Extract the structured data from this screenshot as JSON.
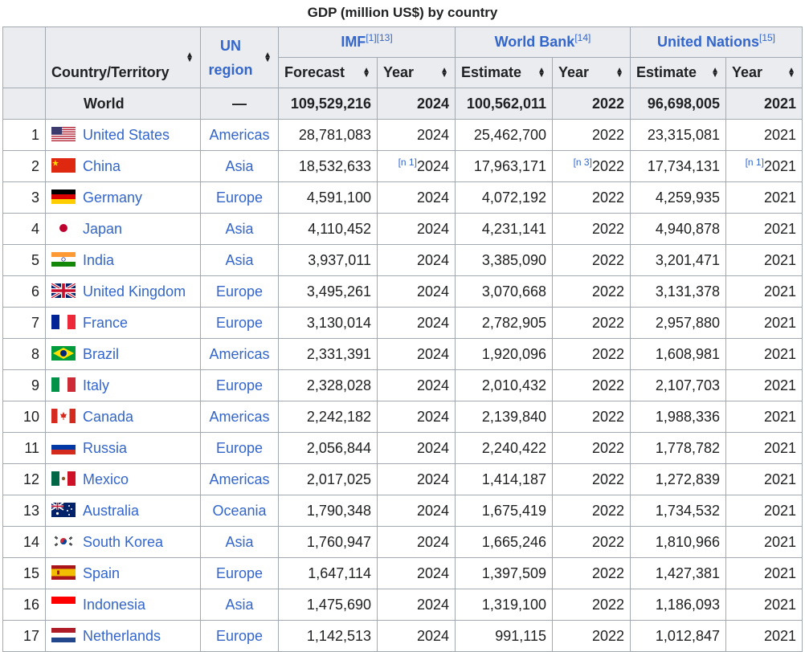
{
  "caption": "GDP (million US$) by country",
  "headers": {
    "country": "Country/Territory",
    "un_region": "UN region",
    "imf": "IMF",
    "imf_refs": "[1][13]",
    "world_bank": "World Bank",
    "wb_refs": "[14]",
    "un": "United Nations",
    "un_refs": "[15]",
    "forecast": "Forecast",
    "estimate": "Estimate",
    "year": "Year"
  },
  "world": {
    "name": "World",
    "region": "—",
    "imf": "109,529,216",
    "imf_year": "2024",
    "wb": "100,562,011",
    "wb_year": "2022",
    "un": "96,698,005",
    "un_year": "2021"
  },
  "rows": [
    {
      "rank": "1",
      "flag": "us-flag",
      "name": "United States",
      "region": "Americas",
      "imf": "28,781,083",
      "imf_note": "",
      "imf_year": "2024",
      "wb": "25,462,700",
      "wb_note": "",
      "wb_year": "2022",
      "un": "23,315,081",
      "un_note": "",
      "un_year": "2021"
    },
    {
      "rank": "2",
      "flag": "cn-flag",
      "name": "China",
      "region": "Asia",
      "imf": "18,532,633",
      "imf_note": "[n 1]",
      "imf_year": "2024",
      "wb": "17,963,171",
      "wb_note": "[n 3]",
      "wb_year": "2022",
      "un": "17,734,131",
      "un_note": "[n 1]",
      "un_year": "2021"
    },
    {
      "rank": "3",
      "flag": "de-flag",
      "name": "Germany",
      "region": "Europe",
      "imf": "4,591,100",
      "imf_note": "",
      "imf_year": "2024",
      "wb": "4,072,192",
      "wb_note": "",
      "wb_year": "2022",
      "un": "4,259,935",
      "un_note": "",
      "un_year": "2021"
    },
    {
      "rank": "4",
      "flag": "jp-flag",
      "name": "Japan",
      "region": "Asia",
      "imf": "4,110,452",
      "imf_note": "",
      "imf_year": "2024",
      "wb": "4,231,141",
      "wb_note": "",
      "wb_year": "2022",
      "un": "4,940,878",
      "un_note": "",
      "un_year": "2021"
    },
    {
      "rank": "5",
      "flag": "in-flag",
      "name": "India",
      "region": "Asia",
      "imf": "3,937,011",
      "imf_note": "",
      "imf_year": "2024",
      "wb": "3,385,090",
      "wb_note": "",
      "wb_year": "2022",
      "un": "3,201,471",
      "un_note": "",
      "un_year": "2021"
    },
    {
      "rank": "6",
      "flag": "gb-flag",
      "name": "United Kingdom",
      "region": "Europe",
      "imf": "3,495,261",
      "imf_note": "",
      "imf_year": "2024",
      "wb": "3,070,668",
      "wb_note": "",
      "wb_year": "2022",
      "un": "3,131,378",
      "un_note": "",
      "un_year": "2021"
    },
    {
      "rank": "7",
      "flag": "fr-flag",
      "name": "France",
      "region": "Europe",
      "imf": "3,130,014",
      "imf_note": "",
      "imf_year": "2024",
      "wb": "2,782,905",
      "wb_note": "",
      "wb_year": "2022",
      "un": "2,957,880",
      "un_note": "",
      "un_year": "2021"
    },
    {
      "rank": "8",
      "flag": "br-flag",
      "name": "Brazil",
      "region": "Americas",
      "imf": "2,331,391",
      "imf_note": "",
      "imf_year": "2024",
      "wb": "1,920,096",
      "wb_note": "",
      "wb_year": "2022",
      "un": "1,608,981",
      "un_note": "",
      "un_year": "2021"
    },
    {
      "rank": "9",
      "flag": "it-flag",
      "name": "Italy",
      "region": "Europe",
      "imf": "2,328,028",
      "imf_note": "",
      "imf_year": "2024",
      "wb": "2,010,432",
      "wb_note": "",
      "wb_year": "2022",
      "un": "2,107,703",
      "un_note": "",
      "un_year": "2021"
    },
    {
      "rank": "10",
      "flag": "ca-flag",
      "name": "Canada",
      "region": "Americas",
      "imf": "2,242,182",
      "imf_note": "",
      "imf_year": "2024",
      "wb": "2,139,840",
      "wb_note": "",
      "wb_year": "2022",
      "un": "1,988,336",
      "un_note": "",
      "un_year": "2021"
    },
    {
      "rank": "11",
      "flag": "ru-flag",
      "name": "Russia",
      "region": "Europe",
      "imf": "2,056,844",
      "imf_note": "",
      "imf_year": "2024",
      "wb": "2,240,422",
      "wb_note": "",
      "wb_year": "2022",
      "un": "1,778,782",
      "un_note": "",
      "un_year": "2021"
    },
    {
      "rank": "12",
      "flag": "mx-flag",
      "name": "Mexico",
      "region": "Americas",
      "imf": "2,017,025",
      "imf_note": "",
      "imf_year": "2024",
      "wb": "1,414,187",
      "wb_note": "",
      "wb_year": "2022",
      "un": "1,272,839",
      "un_note": "",
      "un_year": "2021"
    },
    {
      "rank": "13",
      "flag": "au-flag",
      "name": "Australia",
      "region": "Oceania",
      "imf": "1,790,348",
      "imf_note": "",
      "imf_year": "2024",
      "wb": "1,675,419",
      "wb_note": "",
      "wb_year": "2022",
      "un": "1,734,532",
      "un_note": "",
      "un_year": "2021"
    },
    {
      "rank": "14",
      "flag": "kr-flag",
      "name": "South Korea",
      "region": "Asia",
      "imf": "1,760,947",
      "imf_note": "",
      "imf_year": "2024",
      "wb": "1,665,246",
      "wb_note": "",
      "wb_year": "2022",
      "un": "1,810,966",
      "un_note": "",
      "un_year": "2021"
    },
    {
      "rank": "15",
      "flag": "es-flag",
      "name": "Spain",
      "region": "Europe",
      "imf": "1,647,114",
      "imf_note": "",
      "imf_year": "2024",
      "wb": "1,397,509",
      "wb_note": "",
      "wb_year": "2022",
      "un": "1,427,381",
      "un_note": "",
      "un_year": "2021"
    },
    {
      "rank": "16",
      "flag": "id-flag",
      "name": "Indonesia",
      "region": "Asia",
      "imf": "1,475,690",
      "imf_note": "",
      "imf_year": "2024",
      "wb": "1,319,100",
      "wb_note": "",
      "wb_year": "2022",
      "un": "1,186,093",
      "un_note": "",
      "un_year": "2021"
    },
    {
      "rank": "17",
      "flag": "nl-flag",
      "name": "Netherlands",
      "region": "Europe",
      "imf": "1,142,513",
      "imf_note": "",
      "imf_year": "2024",
      "wb": "991,115",
      "wb_note": "",
      "wb_year": "2022",
      "un": "1,012,847",
      "un_note": "",
      "un_year": "2021"
    }
  ],
  "colors": {
    "link": "#3366cc",
    "header_bg": "#eaecf0",
    "border": "#a2a9b1"
  }
}
